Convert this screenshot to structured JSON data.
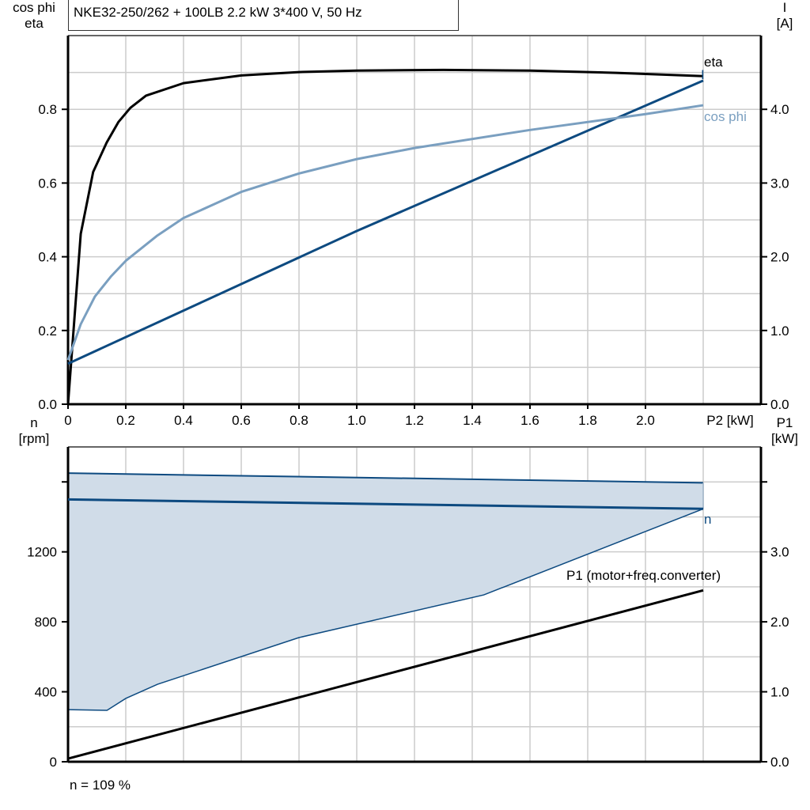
{
  "title": "NKE32-250/262 + 100LB   2.2 kW   3*400 V, 50 Hz",
  "footer": "n = 109 %",
  "colors": {
    "eta": "#000000",
    "I": "#0d4a80",
    "cos_phi": "#7a9fc0",
    "n": "#0d4a80",
    "n_range_fill": "#d0dce8",
    "P1": "#000000",
    "grid": "#cccccc"
  },
  "chart_data": [
    {
      "type": "line",
      "xlabel": "P2 [kW]",
      "xlim": [
        0,
        2.4
      ],
      "xticks": [
        "0",
        "0.2",
        "0.4",
        "0.6",
        "0.8",
        "1.0",
        "1.2",
        "1.4",
        "1.6",
        "1.8",
        "2.0"
      ],
      "ylabel_left": [
        "cos phi",
        "eta"
      ],
      "ylim_left": [
        0,
        1.0
      ],
      "yticks_left": [
        "0.0",
        "0.2",
        "0.4",
        "0.6",
        "0.8"
      ],
      "ylabel_right": [
        "I",
        "[A]"
      ],
      "ylim_right": [
        0,
        5.0
      ],
      "yticks_right": [
        "0.0",
        "1.0",
        "2.0",
        "3.0",
        "4.0"
      ],
      "grid": true,
      "series": [
        {
          "name": "eta",
          "axis": "left",
          "x": [
            0,
            0.044,
            0.087,
            0.134,
            0.175,
            0.216,
            0.27,
            0.4,
            0.6,
            0.8,
            1.0,
            1.3,
            1.6,
            1.9,
            2.2
          ],
          "y": [
            0,
            0.462,
            0.63,
            0.71,
            0.766,
            0.804,
            0.837,
            0.871,
            0.892,
            0.901,
            0.905,
            0.907,
            0.905,
            0.899,
            0.89
          ]
        },
        {
          "name": "I",
          "axis": "right",
          "x": [
            0,
            1.0,
            2.2
          ],
          "y": [
            0.55,
            2.35,
            4.39
          ]
        },
        {
          "name": "cos phi",
          "axis": "left",
          "x": [
            0,
            0.044,
            0.093,
            0.148,
            0.2,
            0.31,
            0.4,
            0.6,
            0.8,
            1.0,
            1.2,
            1.6,
            2.0,
            2.2
          ],
          "y": [
            0.12,
            0.217,
            0.292,
            0.346,
            0.389,
            0.458,
            0.505,
            0.576,
            0.626,
            0.665,
            0.695,
            0.744,
            0.787,
            0.811
          ]
        }
      ]
    },
    {
      "type": "line",
      "xlim": [
        0,
        2.4
      ],
      "ylabel_left": [
        "n",
        "[rpm]"
      ],
      "ylim_left": [
        0,
        1800
      ],
      "yticks_left": [
        "0",
        "400",
        "800",
        "1200"
      ],
      "ylabel_right": [
        "P1",
        "[kW]"
      ],
      "ylim_right": [
        0,
        4.5
      ],
      "yticks_right": [
        "0.0",
        "1.0",
        "2.0",
        "3.0"
      ],
      "grid": true,
      "series": [
        {
          "name": "n",
          "axis": "left",
          "x": [
            0,
            2.2
          ],
          "y": [
            1500,
            1446
          ]
        },
        {
          "name": "P1 (motor+freq.converter)",
          "axis": "right",
          "x": [
            0,
            2.2
          ],
          "y": [
            0.045,
            2.45
          ]
        }
      ],
      "n_range": {
        "upper": {
          "x": [
            0,
            2.2
          ],
          "y": [
            1650,
            1595
          ]
        },
        "lower": {
          "x": [
            0,
            0.135,
            0.2,
            0.31,
            0.8,
            1.44,
            2.2
          ],
          "y": [
            298,
            294,
            362,
            443,
            710,
            954,
            1446
          ]
        }
      }
    }
  ]
}
